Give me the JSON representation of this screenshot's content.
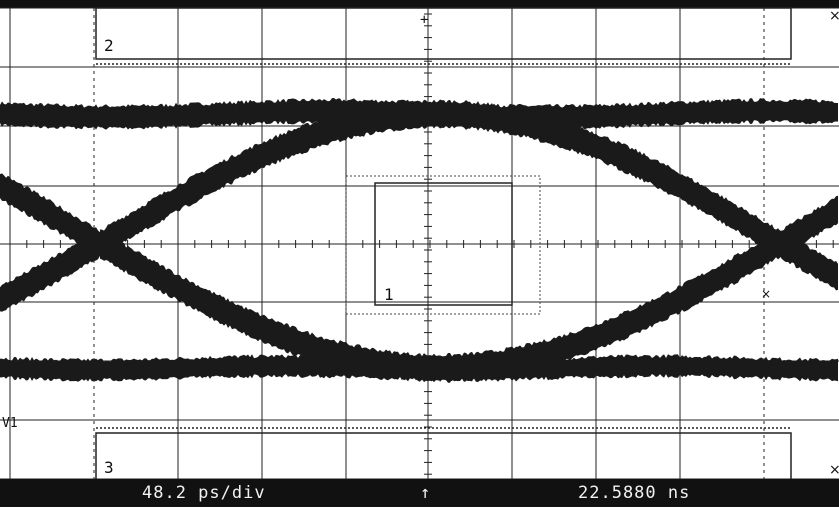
{
  "display": {
    "channel_label": "V1",
    "mask_labels": [
      "2",
      "1",
      "3"
    ],
    "edge_glyph_top": "×",
    "edge_glyph_right_mid": "×",
    "edge_glyph_bottom": "×",
    "marker_top": "+"
  },
  "status": {
    "timebase": "48.2 ps/div",
    "trigger_marker": "↑",
    "position": "22.5880 ns"
  },
  "colors": {
    "background": "#ffffff",
    "trace": "#1a1a1a",
    "grid": "#222222",
    "status_bar": "#111111",
    "status_text": "#f2f2f2"
  }
}
